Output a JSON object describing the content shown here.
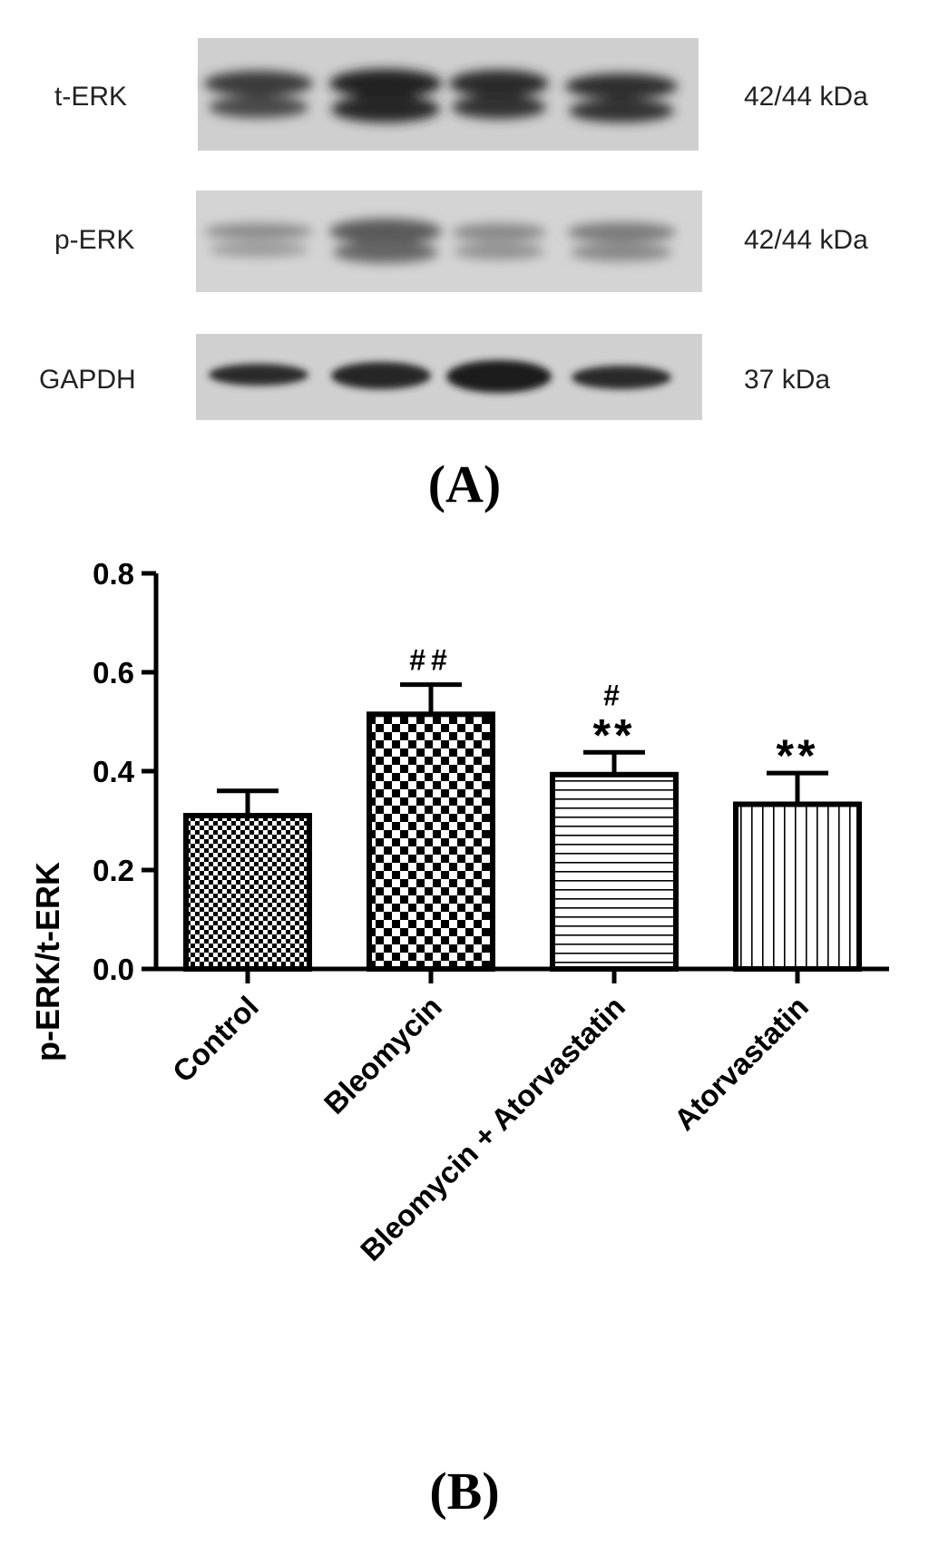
{
  "blot": {
    "rows": [
      {
        "label": "t-ERK",
        "kda": "42/44 kDa"
      },
      {
        "label": "p-ERK",
        "kda": "42/44 kDa"
      },
      {
        "label": "GAPDH",
        "kda": "37 kDa"
      }
    ]
  },
  "panel_a_label": "(A)",
  "panel_b_label": "(B)",
  "chart_data": {
    "type": "bar",
    "categories": [
      "Control",
      "Bleomycin",
      "Bleomycin + Atorvastatin",
      "Atorvastatin"
    ],
    "values": [
      0.31,
      0.515,
      0.393,
      0.333
    ],
    "errors": [
      0.05,
      0.06,
      0.045,
      0.063
    ],
    "patterns": [
      "fine-checker",
      "checker",
      "horizontal-lines",
      "vertical-lines"
    ],
    "annotations": [
      {
        "category": "Bleomycin",
        "lines": [
          "##"
        ]
      },
      {
        "category": "Bleomycin + Atorvastatin",
        "lines": [
          "#",
          "**"
        ]
      },
      {
        "category": "Atorvastatin",
        "lines": [
          "**"
        ]
      }
    ],
    "ylabel": "p-ERK/t-ERK",
    "xlabel": "",
    "ylim": [
      0,
      0.8
    ],
    "yticks": [
      "0.0",
      "0.2",
      "0.4",
      "0.6",
      "0.8"
    ],
    "grid": false
  }
}
